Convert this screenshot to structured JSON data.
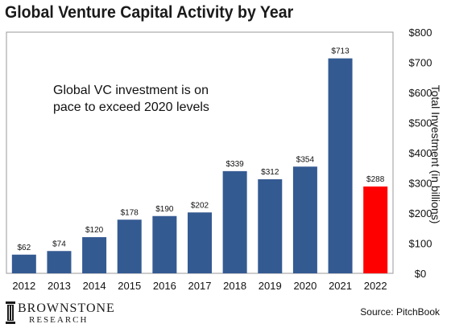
{
  "chart_data": {
    "type": "bar",
    "title": "Global Venture Capital Activity by Year",
    "categories": [
      "2012",
      "2013",
      "2014",
      "2015",
      "2016",
      "2017",
      "2018",
      "2019",
      "2020",
      "2021",
      "2022"
    ],
    "values": [
      62,
      74,
      120,
      178,
      190,
      202,
      339,
      312,
      354,
      713,
      288
    ],
    "data_labels": [
      "$62",
      "$74",
      "$120",
      "$178",
      "$190",
      "$202",
      "$339",
      "$312",
      "$354",
      "$713",
      "$288"
    ],
    "ylabel": "Total Investment (in billions)",
    "ylim": [
      0,
      800
    ],
    "yticks": [
      0,
      100,
      200,
      300,
      400,
      500,
      600,
      700,
      800
    ],
    "ytick_labels": [
      "$0",
      "$100",
      "$200",
      "$300",
      "$400",
      "$500",
      "$600",
      "$700",
      "$800"
    ],
    "y_axis_side": "right",
    "grid": false,
    "colors": {
      "bar": "#345a92",
      "highlight": "#ff0000"
    },
    "highlight_category": "2022",
    "annotation": "Global VC investment is on pace to exceed 2020 levels"
  },
  "branding": {
    "logo_name": "BROWNSTONE",
    "logo_sub": "RESEARCH",
    "source": "Source: PitchBook"
  }
}
